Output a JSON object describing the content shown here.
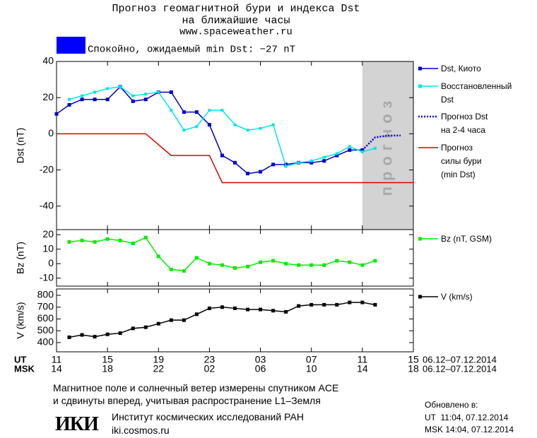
{
  "header": {
    "title": "Прогноз геомагнитной бури и индекса Dst",
    "subtitle": "на ближайшие часы",
    "url": "www.spaceweather.ru"
  },
  "status": {
    "text": "Спокойно, ожидаемый min Dst: −27 nT",
    "color": "#0000ff"
  },
  "time_axis": {
    "ut_label": "UT",
    "msk_label": "MSK",
    "date_range": "06.12–07.12.2014",
    "ut_ticks": [
      {
        "value": 0,
        "label": "11"
      },
      {
        "value": 4,
        "label": "15"
      },
      {
        "value": 8,
        "label": "19"
      },
      {
        "value": 12,
        "label": "23"
      },
      {
        "value": 16,
        "label": "03"
      },
      {
        "value": 20,
        "label": "07"
      },
      {
        "value": 24,
        "label": "11"
      },
      {
        "value": 28,
        "label": "15"
      }
    ],
    "msk_ticks": [
      {
        "value": 0,
        "label": "14"
      },
      {
        "value": 4,
        "label": "18"
      },
      {
        "value": 8,
        "label": "22"
      },
      {
        "value": 12,
        "label": "02"
      },
      {
        "value": 16,
        "label": "06"
      },
      {
        "value": 20,
        "label": "10"
      },
      {
        "value": 24,
        "label": "14"
      },
      {
        "value": 28,
        "label": "18"
      }
    ]
  },
  "chart_data": [
    {
      "type": "line",
      "y_label": "Dst (nT)",
      "xlim": [
        0,
        28
      ],
      "ylim": [
        -53,
        40
      ],
      "yticks": [
        -40,
        -20,
        0,
        20,
        40
      ],
      "forecast_band": {
        "label": "прогноз",
        "from": 24,
        "to": 28,
        "color": "#d3d3d3"
      },
      "series": [
        {
          "name": "Dst, Киото",
          "color": "#0000cc",
          "marker": "square",
          "line_style": "solid",
          "x": [
            0,
            1,
            2,
            3,
            4,
            5,
            6,
            7,
            8,
            9,
            10,
            11,
            12,
            13,
            14,
            15,
            16,
            17,
            18,
            19,
            20,
            21,
            22,
            23,
            24
          ],
          "values": [
            11,
            16,
            19,
            19,
            19,
            26,
            18,
            19,
            23,
            23,
            12,
            12,
            5,
            -12,
            -16,
            -22,
            -21,
            -17,
            -17,
            -16,
            -16,
            -15,
            -12,
            -9,
            -9
          ]
        },
        {
          "name": "Восстановленный\nDst",
          "color": "#00e5e5",
          "marker": "square",
          "line_style": "solid",
          "x": [
            1,
            2,
            3,
            4,
            5,
            6,
            7,
            8,
            9,
            10,
            11,
            12,
            13,
            14,
            15,
            16,
            17,
            18,
            19,
            20,
            21,
            22,
            23,
            24,
            25
          ],
          "values": [
            19,
            21,
            23,
            25,
            26,
            21,
            22,
            23,
            13,
            2,
            4,
            13,
            13,
            5,
            2,
            3,
            5,
            -18,
            -16,
            -15,
            -13,
            -11,
            -7,
            -10,
            -8
          ]
        },
        {
          "name": "Прогноз Dst\nна 2-4 часа",
          "color": "#0000cc",
          "marker": "none",
          "line_style": "dotted",
          "x": [
            24,
            25,
            26,
            27
          ],
          "values": [
            -9,
            -2,
            -1,
            -1
          ]
        },
        {
          "name": "Прогноз\nсилы бури\n(min Dst)",
          "color": "#dd0000",
          "marker": "none",
          "line_style": "solid",
          "x": [
            0,
            7,
            9,
            12,
            13,
            28
          ],
          "values": [
            0,
            0,
            -12,
            -12,
            -27,
            -27
          ]
        }
      ]
    },
    {
      "type": "line",
      "y_label": "Bz (nT)",
      "xlim": [
        0,
        28
      ],
      "ylim": [
        -15.5,
        23.5
      ],
      "yticks": [
        -10,
        0,
        10,
        20
      ],
      "series": [
        {
          "name": "Bz (nT, GSM)",
          "color": "#00ee00",
          "marker": "square",
          "line_style": "solid",
          "x": [
            1,
            2,
            3,
            4,
            5,
            6,
            7,
            8,
            9,
            10,
            11,
            12,
            13,
            14,
            15,
            16,
            17,
            18,
            19,
            20,
            21,
            22,
            23,
            24,
            25
          ],
          "values": [
            15,
            16,
            15,
            17,
            16,
            14,
            18,
            5,
            -4,
            -5,
            4,
            0,
            -1,
            -3,
            -2,
            1,
            2,
            0,
            -1,
            -1,
            -1,
            2,
            1,
            -1,
            2
          ]
        }
      ]
    },
    {
      "type": "line",
      "y_label": "V (km/s)",
      "xlim": [
        0,
        28
      ],
      "ylim": [
        322,
        854
      ],
      "yticks": [
        400,
        500,
        600,
        700,
        800
      ],
      "series": [
        {
          "name": "V (km/s)",
          "color": "#000000",
          "marker": "square",
          "line_style": "solid",
          "x": [
            1,
            2,
            3,
            4,
            5,
            6,
            7,
            8,
            9,
            10,
            11,
            12,
            13,
            14,
            15,
            16,
            17,
            18,
            19,
            20,
            21,
            22,
            23,
            24,
            25
          ],
          "values": [
            445,
            465,
            450,
            470,
            480,
            520,
            530,
            560,
            590,
            590,
            640,
            690,
            700,
            690,
            680,
            680,
            670,
            660,
            710,
            720,
            720,
            720,
            740,
            740,
            720
          ]
        }
      ]
    }
  ],
  "footer": {
    "note": "Магнитное поле и солнечный ветер измерены спутником ACE\nи сдвинуты вперед, учитывая распространение L1–Земля",
    "logo": "ИКИ",
    "institute": "Институт космических исследований РАН",
    "site": "iki.cosmos.ru",
    "updated_title": "Обновлено в:",
    "updated_lines": [
      "UT  11:04, 07.12.2014",
      "MSK 14:04, 07.12.2014"
    ]
  }
}
